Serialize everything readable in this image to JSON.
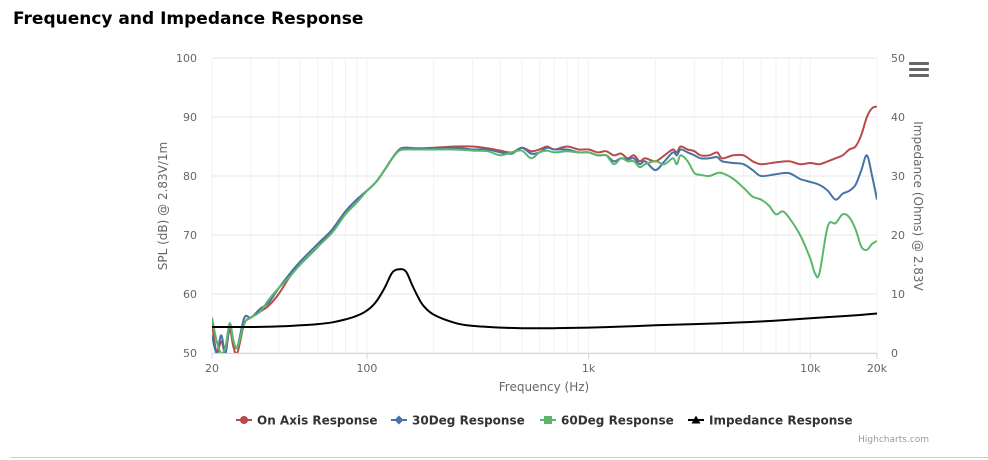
{
  "title": "Frequency and Impedance Response",
  "menu_icon": "hamburger-menu-icon",
  "credits": "Highcharts.com",
  "chart_data": {
    "type": "line",
    "title": "Frequency and Impedance Response",
    "xlabel": "Frequency (Hz)",
    "x_scale": "log",
    "xlim": [
      20,
      20000
    ],
    "x_ticks": [
      {
        "value": 20,
        "label": "20"
      },
      {
        "value": 100,
        "label": "100"
      },
      {
        "value": 1000,
        "label": "1k"
      },
      {
        "value": 10000,
        "label": "10k"
      },
      {
        "value": 20000,
        "label": "20k"
      }
    ],
    "ylabel": "SPL (dB) @ 2.83V/1m",
    "ylim": [
      50,
      100
    ],
    "y_ticks": [
      50,
      60,
      70,
      80,
      90,
      100
    ],
    "y2label": "Impedance (Ohms) @ 2.83V",
    "y2lim": [
      0,
      50
    ],
    "y2_ticks": [
      0,
      10,
      20,
      30,
      40,
      50
    ],
    "grid": true,
    "legend_position": "bottom-center",
    "series": [
      {
        "name": "On Axis Response",
        "color": "#b94a48",
        "marker": "circle",
        "axis": "left",
        "points": [
          [
            20,
            55
          ],
          [
            21,
            50
          ],
          [
            22,
            52
          ],
          [
            23,
            50
          ],
          [
            24,
            54
          ],
          [
            25,
            51
          ],
          [
            26,
            50
          ],
          [
            28,
            55
          ],
          [
            30,
            56
          ],
          [
            33,
            57
          ],
          [
            36,
            58
          ],
          [
            40,
            60
          ],
          [
            45,
            63
          ],
          [
            50,
            65
          ],
          [
            60,
            68
          ],
          [
            70,
            71
          ],
          [
            80,
            74
          ],
          [
            90,
            76
          ],
          [
            100,
            77.5
          ],
          [
            110,
            79
          ],
          [
            120,
            81
          ],
          [
            130,
            83
          ],
          [
            140,
            84.5
          ],
          [
            150,
            84.8
          ],
          [
            170,
            84.7
          ],
          [
            200,
            84.8
          ],
          [
            250,
            85
          ],
          [
            300,
            85
          ],
          [
            350,
            84.7
          ],
          [
            400,
            84.3
          ],
          [
            450,
            84
          ],
          [
            500,
            84.8
          ],
          [
            550,
            84.2
          ],
          [
            600,
            84.5
          ],
          [
            650,
            85
          ],
          [
            700,
            84.5
          ],
          [
            800,
            85
          ],
          [
            900,
            84.5
          ],
          [
            1000,
            84.5
          ],
          [
            1100,
            84
          ],
          [
            1200,
            84.2
          ],
          [
            1300,
            83.5
          ],
          [
            1400,
            83.8
          ],
          [
            1500,
            83
          ],
          [
            1600,
            83.5
          ],
          [
            1700,
            82.5
          ],
          [
            1800,
            83
          ],
          [
            2000,
            82.5
          ],
          [
            2200,
            83.5
          ],
          [
            2400,
            84.5
          ],
          [
            2500,
            84
          ],
          [
            2600,
            85
          ],
          [
            2800,
            84.5
          ],
          [
            3000,
            84.2
          ],
          [
            3200,
            83.5
          ],
          [
            3500,
            83.5
          ],
          [
            3800,
            84
          ],
          [
            4000,
            83
          ],
          [
            4500,
            83.5
          ],
          [
            5000,
            83.5
          ],
          [
            5500,
            82.5
          ],
          [
            6000,
            82
          ],
          [
            7000,
            82.3
          ],
          [
            8000,
            82.5
          ],
          [
            9000,
            82
          ],
          [
            10000,
            82.2
          ],
          [
            11000,
            82
          ],
          [
            12000,
            82.5
          ],
          [
            13000,
            83
          ],
          [
            14000,
            83.5
          ],
          [
            15000,
            84.5
          ],
          [
            16000,
            85
          ],
          [
            17000,
            87
          ],
          [
            18000,
            90
          ],
          [
            19000,
            91.5
          ],
          [
            20000,
            91.8
          ]
        ]
      },
      {
        "name": "30Deg Response",
        "color": "#4572a7",
        "marker": "diamond",
        "axis": "left",
        "points": [
          [
            20,
            53
          ],
          [
            21,
            50
          ],
          [
            22,
            53
          ],
          [
            23,
            50
          ],
          [
            24,
            55
          ],
          [
            25,
            52
          ],
          [
            26,
            51
          ],
          [
            28,
            56
          ],
          [
            30,
            56
          ],
          [
            33,
            57.5
          ],
          [
            36,
            58.5
          ],
          [
            40,
            61
          ],
          [
            45,
            63.5
          ],
          [
            50,
            65.5
          ],
          [
            60,
            68.5
          ],
          [
            70,
            71
          ],
          [
            80,
            74
          ],
          [
            90,
            76
          ],
          [
            100,
            77.5
          ],
          [
            110,
            79
          ],
          [
            120,
            81
          ],
          [
            130,
            83
          ],
          [
            140,
            84.5
          ],
          [
            150,
            84.8
          ],
          [
            170,
            84.6
          ],
          [
            200,
            84.7
          ],
          [
            250,
            84.8
          ],
          [
            300,
            84.5
          ],
          [
            350,
            84.5
          ],
          [
            400,
            84
          ],
          [
            450,
            83.8
          ],
          [
            500,
            84.8
          ],
          [
            550,
            83.8
          ],
          [
            600,
            84
          ],
          [
            650,
            84.8
          ],
          [
            700,
            84.5
          ],
          [
            800,
            84.5
          ],
          [
            900,
            84
          ],
          [
            1000,
            84
          ],
          [
            1100,
            83.5
          ],
          [
            1200,
            83.5
          ],
          [
            1300,
            82.5
          ],
          [
            1400,
            83
          ],
          [
            1500,
            82.8
          ],
          [
            1600,
            83
          ],
          [
            1700,
            82
          ],
          [
            1800,
            82.5
          ],
          [
            2000,
            81
          ],
          [
            2200,
            82.5
          ],
          [
            2400,
            84
          ],
          [
            2500,
            83.5
          ],
          [
            2600,
            84.5
          ],
          [
            2800,
            84
          ],
          [
            3000,
            83.5
          ],
          [
            3200,
            83
          ],
          [
            3500,
            83
          ],
          [
            3800,
            83.2
          ],
          [
            4000,
            82.5
          ],
          [
            4500,
            82.2
          ],
          [
            5000,
            82
          ],
          [
            5500,
            81
          ],
          [
            6000,
            80
          ],
          [
            7000,
            80.3
          ],
          [
            8000,
            80.5
          ],
          [
            9000,
            79.5
          ],
          [
            10000,
            79
          ],
          [
            11000,
            78.5
          ],
          [
            12000,
            77.5
          ],
          [
            13000,
            76
          ],
          [
            14000,
            77
          ],
          [
            15000,
            77.5
          ],
          [
            16000,
            78.5
          ],
          [
            17000,
            81
          ],
          [
            18000,
            83.5
          ],
          [
            19000,
            80
          ],
          [
            20000,
            76
          ]
        ]
      },
      {
        "name": "60Deg Response",
        "color": "#5ab76a",
        "marker": "square",
        "axis": "left",
        "points": [
          [
            20,
            56
          ],
          [
            21,
            52
          ],
          [
            22,
            50
          ],
          [
            23,
            51
          ],
          [
            24,
            55
          ],
          [
            25,
            52
          ],
          [
            26,
            51
          ],
          [
            28,
            55
          ],
          [
            30,
            56
          ],
          [
            33,
            57
          ],
          [
            36,
            59
          ],
          [
            40,
            61
          ],
          [
            45,
            63
          ],
          [
            50,
            65
          ],
          [
            60,
            68
          ],
          [
            70,
            70.5
          ],
          [
            80,
            73.5
          ],
          [
            90,
            75.5
          ],
          [
            100,
            77.5
          ],
          [
            110,
            79
          ],
          [
            120,
            81
          ],
          [
            130,
            83
          ],
          [
            140,
            84.3
          ],
          [
            150,
            84.5
          ],
          [
            170,
            84.5
          ],
          [
            200,
            84.5
          ],
          [
            250,
            84.5
          ],
          [
            300,
            84.3
          ],
          [
            350,
            84.2
          ],
          [
            400,
            83.5
          ],
          [
            450,
            84
          ],
          [
            500,
            84.3
          ],
          [
            550,
            83
          ],
          [
            600,
            84
          ],
          [
            650,
            84.3
          ],
          [
            700,
            84
          ],
          [
            800,
            84.2
          ],
          [
            900,
            84
          ],
          [
            1000,
            84
          ],
          [
            1100,
            83.5
          ],
          [
            1200,
            83.5
          ],
          [
            1300,
            82
          ],
          [
            1400,
            83
          ],
          [
            1500,
            82.5
          ],
          [
            1600,
            82.5
          ],
          [
            1700,
            81.5
          ],
          [
            1800,
            82
          ],
          [
            2000,
            82.5
          ],
          [
            2200,
            82
          ],
          [
            2400,
            83
          ],
          [
            2500,
            82
          ],
          [
            2600,
            83.5
          ],
          [
            2800,
            82.5
          ],
          [
            3000,
            80.5
          ],
          [
            3200,
            80.2
          ],
          [
            3500,
            80
          ],
          [
            3800,
            80.5
          ],
          [
            4000,
            80.5
          ],
          [
            4500,
            79.5
          ],
          [
            5000,
            78
          ],
          [
            5500,
            76.5
          ],
          [
            6000,
            76
          ],
          [
            6500,
            75
          ],
          [
            7000,
            73.5
          ],
          [
            7500,
            74
          ],
          [
            8000,
            73
          ],
          [
            9000,
            70
          ],
          [
            10000,
            66
          ],
          [
            10500,
            63.5
          ],
          [
            11000,
            63.5
          ],
          [
            12000,
            71.5
          ],
          [
            13000,
            72
          ],
          [
            14000,
            73.5
          ],
          [
            15000,
            73
          ],
          [
            16000,
            71
          ],
          [
            17000,
            68
          ],
          [
            18000,
            67.5
          ],
          [
            19000,
            68.5
          ],
          [
            20000,
            69
          ]
        ]
      },
      {
        "name": "Impedance Response",
        "color": "#000000",
        "marker": "triangle",
        "axis": "right",
        "points": [
          [
            20,
            4.4
          ],
          [
            30,
            4.4
          ],
          [
            40,
            4.5
          ],
          [
            50,
            4.7
          ],
          [
            60,
            4.9
          ],
          [
            70,
            5.2
          ],
          [
            80,
            5.7
          ],
          [
            90,
            6.3
          ],
          [
            100,
            7.2
          ],
          [
            110,
            8.7
          ],
          [
            120,
            11
          ],
          [
            130,
            13.6
          ],
          [
            140,
            14.2
          ],
          [
            150,
            13.8
          ],
          [
            160,
            11.5
          ],
          [
            170,
            9.5
          ],
          [
            180,
            8
          ],
          [
            200,
            6.5
          ],
          [
            250,
            5.1
          ],
          [
            300,
            4.6
          ],
          [
            400,
            4.3
          ],
          [
            500,
            4.2
          ],
          [
            700,
            4.2
          ],
          [
            1000,
            4.3
          ],
          [
            1500,
            4.5
          ],
          [
            2000,
            4.7
          ],
          [
            3000,
            4.9
          ],
          [
            5000,
            5.2
          ],
          [
            7000,
            5.5
          ],
          [
            10000,
            5.9
          ],
          [
            15000,
            6.3
          ],
          [
            20000,
            6.7
          ]
        ]
      }
    ]
  }
}
